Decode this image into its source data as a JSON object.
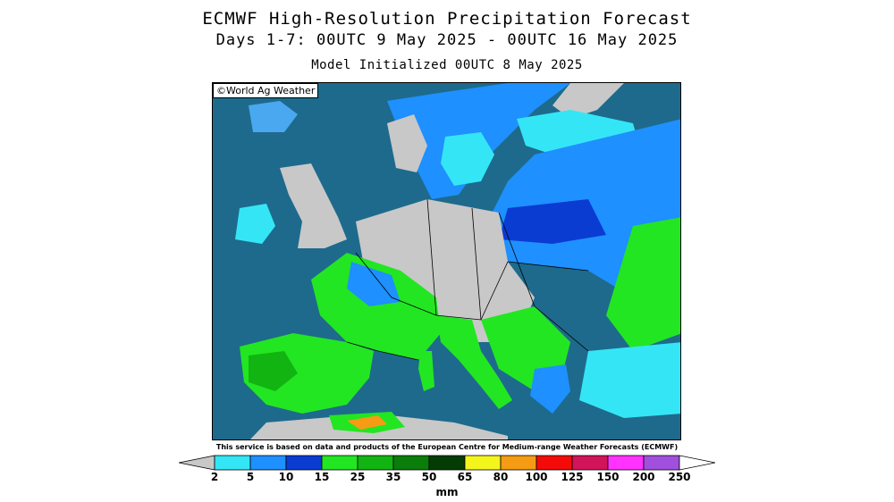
{
  "header": {
    "title": "ECMWF High-Resolution Precipitation Forecast",
    "period": "Days 1-7: 00UTC 9 May 2025 - 00UTC 16 May 2025",
    "init": "Model Initialized 00UTC 8 May 2025"
  },
  "map": {
    "region": "Europe",
    "credit": "©World Ag Weather",
    "colors": {
      "sea": "#1e6a8c",
      "land_dry": "#c8c8c8",
      "border": "#000000"
    }
  },
  "disclaimer": "This service is based on data and products of the European Centre for Medium-range Weather Forecasts (ECMWF)",
  "legend": {
    "unit": "mm",
    "thresholds": [
      "2",
      "5",
      "10",
      "15",
      "25",
      "35",
      "50",
      "65",
      "80",
      "100",
      "125",
      "150",
      "200",
      "250"
    ],
    "colors": [
      "#c8c8c8",
      "#34e6f5",
      "#1e90ff",
      "#0a3cd2",
      "#22e622",
      "#12b412",
      "#0a7d0a",
      "#053c05",
      "#f5f51e",
      "#f59b14",
      "#f50a0a",
      "#d2145a",
      "#ff32ff",
      "#a050dc",
      "#ffffff"
    ]
  }
}
